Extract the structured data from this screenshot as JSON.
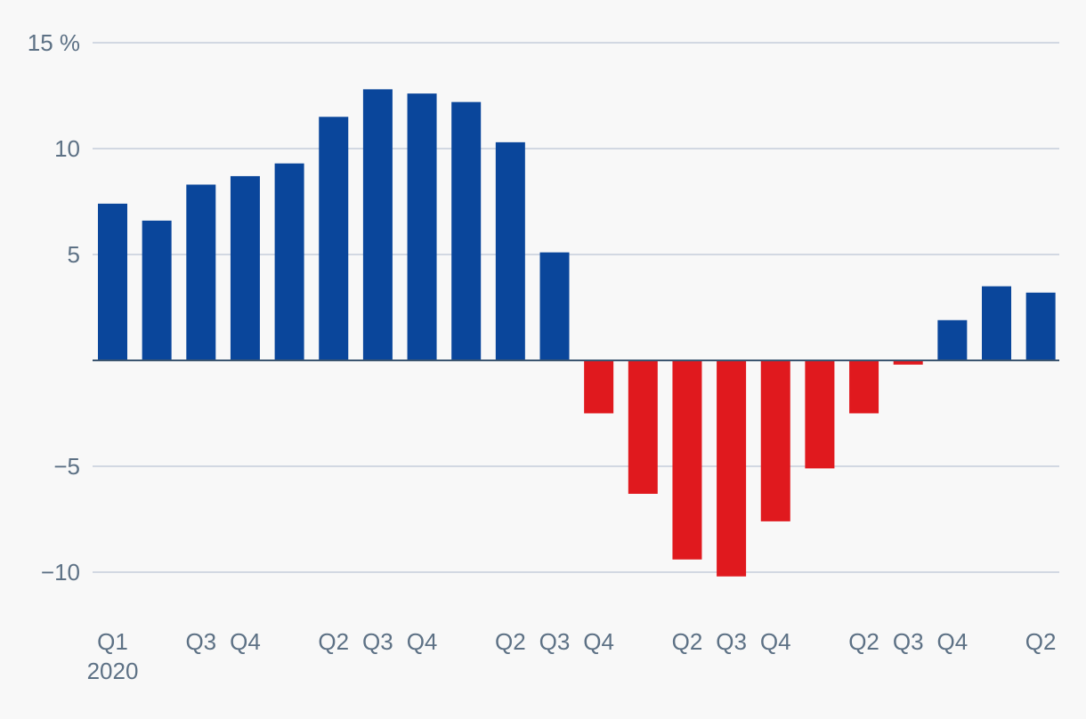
{
  "colors": {
    "positive": "#0a469b",
    "negative": "#e0191e",
    "grid": "#c5ceda",
    "zero_line": "#3b5570",
    "label": "#5d7185",
    "background": "#f8f8f8"
  },
  "chart_data": {
    "type": "bar",
    "title": "",
    "xlabel": "",
    "ylabel": "",
    "y_unit": "%",
    "ylim": [
      -11.5,
      15
    ],
    "y_ticks": [
      {
        "value": 15,
        "label": "15 %"
      },
      {
        "value": 10,
        "label": "10"
      },
      {
        "value": 5,
        "label": "5"
      },
      {
        "value": 0,
        "label": ""
      },
      {
        "value": -5,
        "label": "−5"
      },
      {
        "value": -10,
        "label": "−10"
      }
    ],
    "categories": [
      "Q1 2020",
      "Q2 2020",
      "Q3 2020",
      "Q4 2020",
      "Q1 2021",
      "Q2 2021",
      "Q3 2021",
      "Q4 2021",
      "Q1 2022",
      "Q2 2022",
      "Q3 2022",
      "Q4 2022",
      "Q1 2023",
      "Q2 2023",
      "Q3 2023",
      "Q4 2023",
      "Q1 2024",
      "Q2 2024",
      "Q3 2024",
      "Q4 2024",
      "Q1 2025",
      "Q2 2025"
    ],
    "x_tick_labels": [
      "Q1",
      "",
      "Q3",
      "Q4",
      "",
      "Q2",
      "Q3",
      "Q4",
      "",
      "Q2",
      "Q3",
      "Q4",
      "",
      "Q2",
      "Q3",
      "Q4",
      "",
      "Q2",
      "Q3",
      "Q4",
      "",
      "Q2"
    ],
    "x_year_labels": [
      {
        "index": 0,
        "label": "2020"
      }
    ],
    "values": [
      7.4,
      6.6,
      8.3,
      8.7,
      9.3,
      11.5,
      12.8,
      12.6,
      12.2,
      10.3,
      5.1,
      -2.5,
      -6.3,
      -9.4,
      -10.2,
      -7.6,
      -5.1,
      -2.5,
      -0.2,
      1.9,
      3.5,
      3.2
    ],
    "grid": true,
    "legend": "none"
  }
}
